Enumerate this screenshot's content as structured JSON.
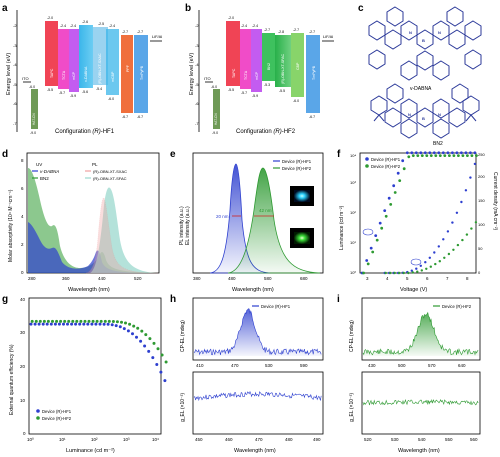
{
  "panel_letters": [
    "a",
    "b",
    "c",
    "d",
    "e",
    "f",
    "g",
    "h",
    "i"
  ],
  "colors": {
    "ito_bar": "#6f9a57",
    "tapc": "#f04455",
    "tctc": "#f04cc8",
    "mcp": "#c35cf0",
    "host_blue": "#3bb6ea",
    "emitter_light": "#9ad3f0",
    "ppf": "#f06f3c",
    "tmpypb": "#5aa6e8",
    "bn2_green": "#3ec15e",
    "cbp": "#88d46a",
    "blue_series": "#2d3fcf",
    "green_series": "#2e9a32",
    "pl_teal": "#9bd8ce",
    "pl_pink": "#f0a0a0"
  },
  "panel_a": {
    "ylabel": "Energy level (eV)",
    "caption_prefix": "Configuration ",
    "caption_italic": "(R)",
    "caption_suffix": "-HF1",
    "ito": "ITO",
    "hatcn": "HAT-CN",
    "lifal": "LiF/Al",
    "layers": [
      "TAPC",
      "TCTA",
      "mCP",
      "v-DABNA",
      "(R)-OBN-XT-SXAC",
      "mCBP",
      "PPF",
      "TmPyPB"
    ],
    "top_values": [
      "-2.0",
      "-2.4",
      "-2.4",
      "-2.6",
      "-2.5",
      "-2.4",
      "-2.7",
      "-2.7"
    ],
    "bottom_values": [
      "-5.5",
      "-5.7",
      "-5.9",
      "-5.6",
      "-5.4",
      "-6.0",
      "-6.7",
      "-6.7"
    ],
    "ito_value": "-4.8",
    "hatcn_value": "-9.0",
    "ito_top": "-6.0",
    "lifal_value": "-2.9"
  },
  "panel_b": {
    "ylabel": "Energy level (eV)",
    "caption_prefix": "Configuration ",
    "caption_italic": "(R)",
    "caption_suffix": "-HF2",
    "ito": "ITO",
    "hatcn": "HAT-CN",
    "lifal": "LiF/Al",
    "layers": [
      "TAPC",
      "TCTA",
      "mCP",
      "BN2",
      "(R)-OBN-XT-SFAC",
      "CBP",
      "TmPyPB"
    ],
    "top_values": [
      "-2.0",
      "-2.4",
      "-2.4",
      "-2.7",
      "-2.8",
      "-2.7",
      "-2.7"
    ],
    "bottom_values": [
      "-5.5",
      "-5.7",
      "-5.9",
      "-5.3",
      "-5.5",
      "-6.0",
      "-6.7"
    ],
    "ito_value": "-4.8",
    "hatcn_value": "-9.0",
    "ito_top": "-6.0",
    "lifal_value": "-2.9"
  },
  "panel_c": {
    "mol1": "v-DABNA",
    "mol2": "BN2"
  },
  "panel_d": {
    "ylabel": "Molar absorptivity (10⁴ M⁻¹cm⁻¹)",
    "xlabel": "Wavelength (nm)",
    "uv": "UV",
    "pl": "PL",
    "leg1": "v-DABNA",
    "leg2": "BN2",
    "leg3": "(R)-OBN-XT-SXAC",
    "leg4": "(R)-OBN-XT-SFAC",
    "xticks": [
      "280",
      "360",
      "440",
      "520"
    ],
    "yticks": [
      "0",
      "2",
      "4",
      "6",
      "8"
    ]
  },
  "panel_e": {
    "ylabel": "PL intensity (a.u.)",
    "ylabel2": "EL intensity (a.u.)",
    "xlabel": "Wavelength (nm)",
    "leg1": "Device (R)-HF1",
    "leg2": "Device (R)-HF2",
    "fw1": "20 nm",
    "fw2": "42 nm",
    "xticks": [
      "380",
      "480",
      "580",
      "680"
    ]
  },
  "panel_f": {
    "ylabel": "Luminance (cd m⁻²)",
    "ylabel2": "Current density (mA cm⁻²)",
    "xlabel": "Voltage (V)",
    "leg1": "Device (R)-HF1",
    "leg2": "Device (R)-HF2",
    "xticks": [
      "3",
      "4",
      "5",
      "6",
      "7",
      "8"
    ],
    "yticks": [
      "10⁰",
      "10¹",
      "10²",
      "10³",
      "10⁴"
    ],
    "y2ticks": [
      "0",
      "50",
      "100",
      "150",
      "200",
      "250"
    ]
  },
  "panel_g": {
    "ylabel": "External quantum efficiency (%)",
    "xlabel": "Luminance (cd m⁻²)",
    "leg1": "Device (R)-HF1",
    "leg2": "Device (R)-HF2",
    "xticks": [
      "10⁰",
      "10¹",
      "10²",
      "10³",
      "10⁴"
    ],
    "yticks": [
      "0",
      "10",
      "20",
      "30",
      "40"
    ]
  },
  "panel_h": {
    "ylabel_top": "CP-EL (mdeg)",
    "ylabel_bot": "g_EL (×10⁻³)",
    "xlabel": "Wavelength (nm)",
    "leg": "Device (R)-HF1",
    "xticks_top": [
      "410",
      "470",
      "530",
      "590"
    ],
    "xticks_bot": [
      "450",
      "460",
      "470",
      "480",
      "490"
    ],
    "yticks_top": [
      "0",
      "10",
      "20"
    ],
    "yticks_bot": [
      "-1",
      "0",
      "1",
      "2"
    ]
  },
  "panel_i": {
    "ylabel_top": "CP-EL (mdeg)",
    "ylabel_bot": "g_EL (×10⁻³)",
    "xlabel": "Wavelength (nm)",
    "leg": "Device (R)-HF2",
    "xticks_top": [
      "430",
      "500",
      "570",
      "640"
    ],
    "xticks_bot": [
      "520",
      "530",
      "540",
      "550",
      "560"
    ],
    "yticks_top": [
      "0",
      "5",
      "10"
    ],
    "yticks_bot": [
      "-1",
      "0",
      "1",
      "2"
    ]
  }
}
